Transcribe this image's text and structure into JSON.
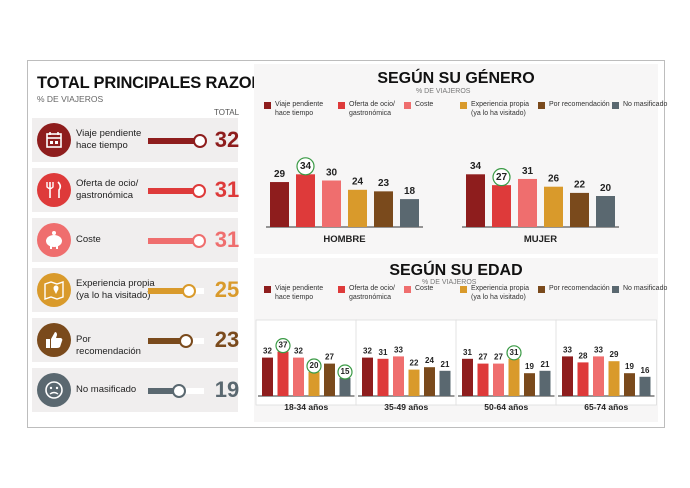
{
  "colors": {
    "viaje": "#8e1d1d",
    "oferta": "#de3a3a",
    "coste": "#ef6e6e",
    "experiencia": "#d99a2b",
    "recomendacion": "#7a4a1c",
    "no_masificado": "#5a6870"
  },
  "left": {
    "title": "TOTAL PRINCIPALES RAZONES",
    "subtitle": "% DE VIAJEROS",
    "total_label": "TOTAL",
    "items": [
      {
        "label_1": "Viaje pendiente",
        "label_2": "hace tiempo",
        "value": 32,
        "icon": "calendar-icon",
        "color": "#8e1d1d"
      },
      {
        "label_1": "Oferta de ocio/",
        "label_2": "gastronómica",
        "value": 31,
        "icon": "fork-knife-icon",
        "color": "#de3a3a"
      },
      {
        "label_1": "Coste",
        "label_2": "",
        "value": 31,
        "icon": "piggy-bank-icon",
        "color": "#ef6e6e"
      },
      {
        "label_1": "Experiencia propia",
        "label_2": "(ya lo ha visitado)",
        "value": 25,
        "icon": "map-pin-icon",
        "color": "#d99a2b"
      },
      {
        "label_1": "Por recomendación",
        "label_2": "",
        "value": 23,
        "icon": "thumbs-up-icon",
        "color": "#7a4a1c"
      },
      {
        "label_1": "No masificado",
        "label_2": "",
        "value": 19,
        "icon": "sad-face-icon",
        "color": "#5a6870"
      }
    ]
  },
  "legend": [
    {
      "line1": "Viaje pendiente",
      "line2": "hace tiempo"
    },
    {
      "line1": "Oferta de ocio/",
      "line2": "gastronómica"
    },
    {
      "line1": "Coste",
      "line2": ""
    },
    {
      "line1": "Experiencia propia",
      "line2": "(ya lo ha visitado)"
    },
    {
      "line1": "Por recomendación",
      "line2": ""
    },
    {
      "line1": "No masificado",
      "line2": ""
    }
  ],
  "genero": {
    "title": "SEGÚN SU GÉNERO",
    "subtitle": "% DE VIAJEROS"
  },
  "edad": {
    "title": "SEGÚN SU EDAD",
    "subtitle": "% DE VIAJEROS"
  },
  "chart_data": [
    {
      "type": "bar",
      "title": "TOTAL PRINCIPALES RAZONES",
      "subtitle": "% DE VIAJEROS",
      "categories": [
        "Viaje pendiente hace tiempo",
        "Oferta de ocio/ gastronómica",
        "Coste",
        "Experiencia propia (ya lo ha visitado)",
        "Por recomendación",
        "No masificado"
      ],
      "values": [
        32,
        31,
        31,
        25,
        23,
        19
      ]
    },
    {
      "type": "bar",
      "title": "SEGÚN SU GÉNERO",
      "subtitle": "% DE VIAJEROS",
      "categories": [
        "HOMBRE",
        "MUJER"
      ],
      "series": [
        {
          "name": "Viaje pendiente hace tiempo",
          "values": [
            29,
            34
          ]
        },
        {
          "name": "Oferta de ocio/ gastronómica",
          "values": [
            34,
            27
          ]
        },
        {
          "name": "Coste",
          "values": [
            30,
            31
          ]
        },
        {
          "name": "Experiencia propia (ya lo ha visitado)",
          "values": [
            24,
            26
          ]
        },
        {
          "name": "Por recomendación",
          "values": [
            23,
            22
          ]
        },
        {
          "name": "No masificado",
          "values": [
            18,
            20
          ]
        }
      ],
      "highlighted": [
        {
          "group": "HOMBRE",
          "series": 1
        },
        {
          "group": "MUJER",
          "series": 1
        }
      ],
      "legend": "top"
    },
    {
      "type": "bar",
      "title": "SEGÚN SU EDAD",
      "subtitle": "% DE VIAJEROS",
      "categories": [
        "18-34 años",
        "35-49 años",
        "50-64 años",
        "65-74 años"
      ],
      "series": [
        {
          "name": "Viaje pendiente hace tiempo",
          "values": [
            32,
            32,
            31,
            33
          ]
        },
        {
          "name": "Oferta de ocio/ gastronómica",
          "values": [
            37,
            31,
            27,
            28
          ]
        },
        {
          "name": "Coste",
          "values": [
            32,
            33,
            27,
            33
          ]
        },
        {
          "name": "Experiencia propia (ya lo ha visitado)",
          "values": [
            20,
            22,
            31,
            29
          ]
        },
        {
          "name": "Por recomendación",
          "values": [
            27,
            24,
            19,
            19
          ]
        },
        {
          "name": "No masificado",
          "values": [
            15,
            21,
            21,
            16
          ]
        }
      ],
      "highlighted": [
        {
          "group": "18-34 años",
          "series": 1
        },
        {
          "group": "18-34 años",
          "series": 3
        },
        {
          "group": "18-34 años",
          "series": 5
        },
        {
          "group": "50-64 años",
          "series": 3
        }
      ],
      "legend": "top"
    }
  ]
}
